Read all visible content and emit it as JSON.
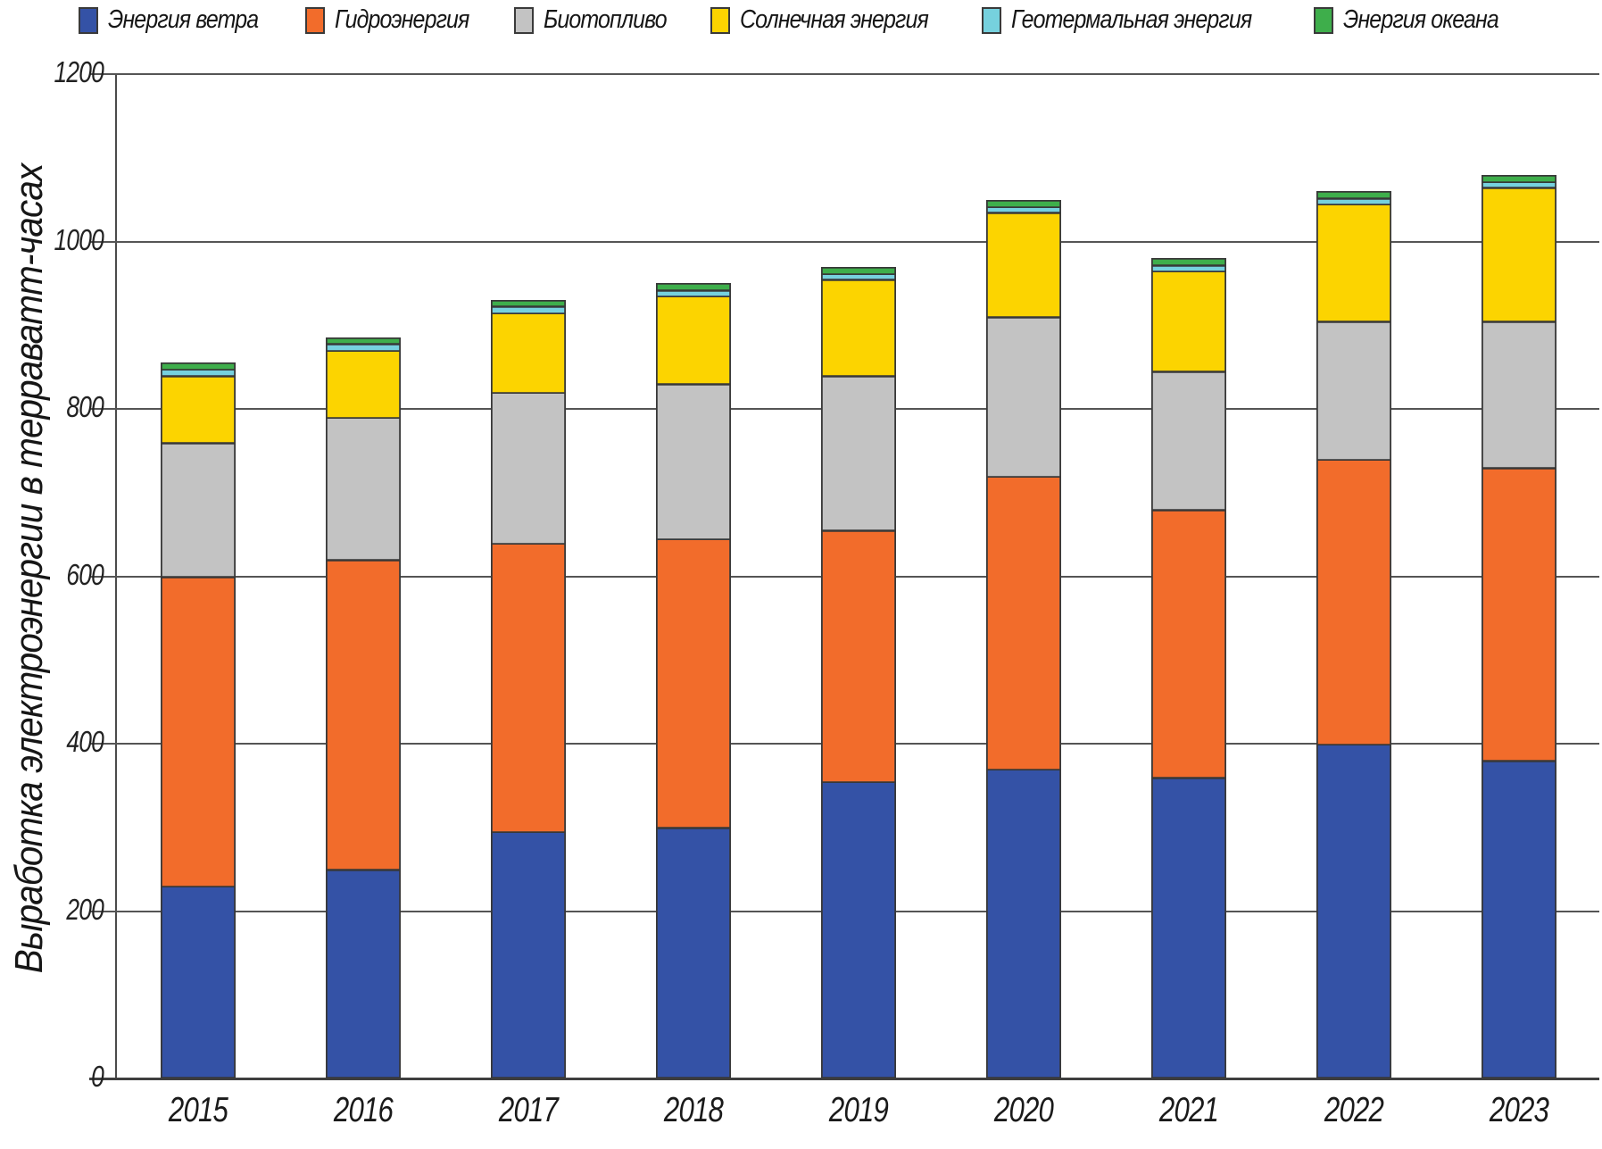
{
  "page": {
    "background": "#ffffff"
  },
  "chart_data": {
    "type": "bar",
    "stacked": true,
    "title": "",
    "xlabel": "",
    "ylabel": "Выработка электроэнергии в терраватт-часах",
    "categories": [
      "2015",
      "2016",
      "2017",
      "2018",
      "2019",
      "2020",
      "2021",
      "2022",
      "2023"
    ],
    "y_ticks": [
      0,
      200,
      400,
      600,
      800,
      1000,
      1200
    ],
    "y_tick_labels": [
      "0",
      "200",
      "400",
      "600",
      "800",
      "1000",
      "1200"
    ],
    "ylim": [
      0,
      1200
    ],
    "grid": true,
    "legend_position": "top",
    "units": "ТВт·ч",
    "series": [
      {
        "name": "Энергия ветра",
        "color": "#3452A6",
        "values": [
          230,
          250,
          295,
          300,
          355,
          370,
          360,
          400,
          380
        ]
      },
      {
        "name": "Гидроэнергия",
        "color": "#F26C2B",
        "values": [
          370,
          370,
          345,
          345,
          300,
          350,
          320,
          340,
          350
        ]
      },
      {
        "name": "Биотопливо",
        "color": "#C3C3C3",
        "values": [
          160,
          170,
          180,
          185,
          185,
          190,
          165,
          165,
          175
        ]
      },
      {
        "name": "Солнечная энергия",
        "color": "#FCD400",
        "values": [
          80,
          80,
          95,
          105,
          115,
          125,
          120,
          140,
          160
        ]
      },
      {
        "name": "Геотермальная энергия",
        "color": "#76D1DE",
        "values": [
          8,
          8,
          8,
          7,
          7,
          7,
          7,
          7,
          7
        ]
      },
      {
        "name": "Энергия океана",
        "color": "#3EAE4B",
        "values": [
          7,
          7,
          7,
          8,
          8,
          8,
          8,
          8,
          8
        ]
      }
    ],
    "totals": [
      855,
      885,
      930,
      950,
      970,
      1050,
      980,
      1060,
      1080
    ],
    "border_color": "#3a3a3a",
    "gridline_color": "#555555"
  }
}
